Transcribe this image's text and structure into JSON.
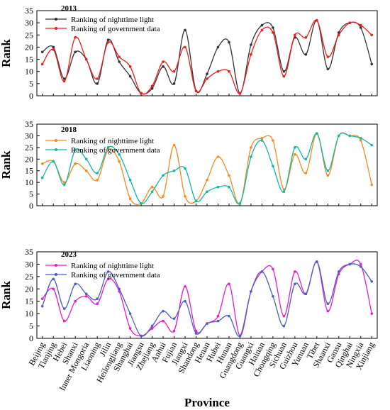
{
  "chart_data": [
    {
      "type": "line",
      "panel_label": "2013",
      "ylabel": "Rank",
      "ylim": [
        0,
        35
      ],
      "yticks": [
        0,
        5,
        10,
        15,
        20,
        25,
        30,
        35
      ],
      "categories": [
        "Beijing",
        "Tianjing",
        "Hebei",
        "Shanxi",
        "Inner Mongoria",
        "Liaoning",
        "Jilin",
        "Heilongjiang",
        "Shanghai",
        "Jiangsu",
        "Zhejiang",
        "Anhui",
        "Fujian",
        "Jiangxi",
        "Shandong",
        "Henan",
        "Hubei",
        "Hunan",
        "Guangdong",
        "Guangxi",
        "Hainan",
        "Chongqing",
        "Sichuan",
        "Guizhou",
        "Yunnan",
        "Tibet",
        "Shaanxi",
        "Gansu",
        "Qinghai",
        "Ningxia",
        "Xinjiang"
      ],
      "series": [
        {
          "name": "Ranking of nighttime light",
          "color": "#333333",
          "values": [
            18,
            20,
            7,
            18,
            15,
            5,
            23,
            14,
            8,
            1,
            3,
            12,
            5,
            27,
            2,
            9,
            20,
            22,
            1,
            21,
            29,
            28,
            10,
            24,
            17,
            31,
            11,
            26,
            30,
            28,
            13
          ]
        },
        {
          "name": "Ranking of government data",
          "color": "#ee1c1c",
          "values": [
            13,
            19,
            6,
            24,
            15,
            7,
            22,
            16,
            12,
            1,
            4,
            14,
            10,
            20,
            2,
            7,
            10,
            10,
            1,
            17,
            27,
            26,
            8,
            25,
            24,
            31,
            16,
            25,
            30,
            29,
            25
          ]
        }
      ]
    },
    {
      "type": "line",
      "panel_label": "2018",
      "ylabel": "Rank",
      "ylim": [
        0,
        35
      ],
      "yticks": [
        0,
        5,
        10,
        15,
        20,
        25,
        30,
        35
      ],
      "categories": [
        "Beijing",
        "Tianjing",
        "Hebei",
        "Shanxi",
        "Inner Mongoria",
        "Liaoning",
        "Jilin",
        "Heilongjiang",
        "Shanghai",
        "Jiangsu",
        "Zhejiang",
        "Anhui",
        "Fujian",
        "Jiangxi",
        "Shandong",
        "Henan",
        "Hubei",
        "Hunan",
        "Guangdong",
        "Guangxi",
        "Hainan",
        "Chongqing",
        "Sichuan",
        "Guizhou",
        "Yunnan",
        "Tibet",
        "Shaanxi",
        "Gansu",
        "Qinghai",
        "Ningxia",
        "Xinjiang"
      ],
      "series": [
        {
          "name": "Ranking of nighttime light",
          "color": "#f58a1f",
          "values": [
            18,
            19,
            10,
            18,
            15,
            11,
            24,
            19,
            3,
            1,
            8,
            4,
            26,
            4,
            2,
            11,
            21,
            13,
            1,
            25,
            29,
            28,
            7,
            22,
            14,
            31,
            13,
            30,
            30,
            28,
            9
          ]
        },
        {
          "name": "Ranking of government data",
          "color": "#12b5aa",
          "values": [
            12,
            19,
            9,
            24,
            20,
            14,
            25,
            22,
            11,
            1,
            6,
            13,
            15,
            16,
            2,
            6,
            8,
            8,
            1,
            21,
            28,
            17,
            6,
            25,
            20,
            31,
            15,
            30,
            30,
            29,
            26
          ]
        }
      ]
    },
    {
      "type": "line",
      "panel_label": "2023",
      "ylabel": "Rank",
      "xlabel": "Province",
      "ylim": [
        0,
        35
      ],
      "yticks": [
        0,
        5,
        10,
        15,
        20,
        25,
        30,
        35
      ],
      "categories": [
        "Beijing",
        "Tianjing",
        "Hebei",
        "Shanxi",
        "Inner Mongoria",
        "Liaoning",
        "Jilin",
        "Heilongjiang",
        "Shanghai",
        "Jiangsu",
        "Zhejiang",
        "Anhui",
        "Fujian",
        "Jiangxi",
        "Shandong",
        "Henan",
        "Hubei",
        "Hunan",
        "Guangdong",
        "Guangxi",
        "Hainan",
        "Chongqing",
        "Sichuan",
        "Guizhou",
        "Yunnan",
        "Tibet",
        "Shaanxi",
        "Gansu",
        "Qinghai",
        "Ningxia",
        "Xinjiang"
      ],
      "series": [
        {
          "name": "Ranking of nighttime light",
          "color": "#e81cc8",
          "values": [
            16,
            20,
            7,
            15,
            17,
            14,
            24,
            19,
            4,
            1,
            4,
            7,
            3,
            21,
            3,
            6,
            9,
            22,
            1,
            19,
            27,
            28,
            9,
            27,
            18,
            31,
            11,
            26,
            30,
            30,
            10
          ]
        },
        {
          "name": "Ranking of government data",
          "color": "#4a5fc1",
          "values": [
            13,
            24,
            12,
            22,
            18,
            16,
            27,
            20,
            10,
            1,
            5,
            11,
            8,
            15,
            2,
            6,
            7,
            9,
            1,
            19,
            27,
            17,
            5,
            22,
            18,
            31,
            14,
            27,
            30,
            29,
            23
          ]
        }
      ]
    }
  ]
}
